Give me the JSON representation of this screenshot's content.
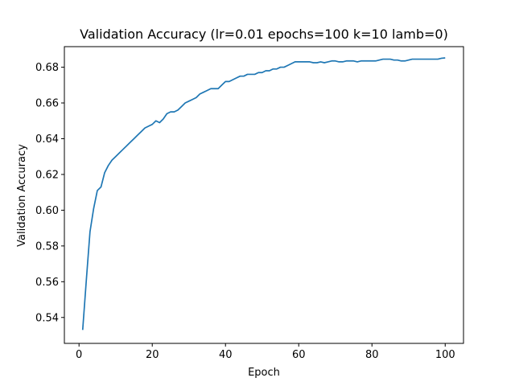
{
  "chart_data": {
    "type": "line",
    "title": "Validation Accuracy (lr=0.01 epochs=100 k=10 lamb=0)",
    "xlabel": "Epoch",
    "ylabel": "Validation Accuracy",
    "xlim": [
      -4,
      105
    ],
    "ylim": [
      0.5255,
      0.6915
    ],
    "xticks": [
      0,
      20,
      40,
      60,
      80,
      100
    ],
    "yticks": [
      0.54,
      0.56,
      0.58,
      0.6,
      0.62,
      0.64,
      0.66,
      0.68
    ],
    "xtick_labels": [
      "0",
      "20",
      "40",
      "60",
      "80",
      "100"
    ],
    "ytick_labels": [
      "0.54",
      "0.56",
      "0.58",
      "0.60",
      "0.62",
      "0.64",
      "0.66",
      "0.68"
    ],
    "grid": false,
    "line_color": "#1f77b4",
    "series": [
      {
        "x": [
          1,
          2,
          3,
          4,
          5,
          6,
          7,
          8,
          9,
          10,
          11,
          12,
          13,
          14,
          15,
          16,
          17,
          18,
          19,
          20,
          21,
          22,
          23,
          24,
          25,
          26,
          27,
          28,
          29,
          30,
          31,
          32,
          33,
          34,
          35,
          36,
          37,
          38,
          39,
          40,
          41,
          42,
          43,
          44,
          45,
          46,
          47,
          48,
          49,
          50,
          51,
          52,
          53,
          54,
          55,
          56,
          57,
          58,
          59,
          60,
          61,
          62,
          63,
          64,
          65,
          66,
          67,
          68,
          69,
          70,
          71,
          72,
          73,
          74,
          75,
          76,
          77,
          78,
          79,
          80,
          81,
          82,
          83,
          84,
          85,
          86,
          87,
          88,
          89,
          90,
          91,
          92,
          93,
          94,
          95,
          96,
          97,
          98,
          99,
          100
        ],
        "values": [
          0.533,
          0.561,
          0.588,
          0.601,
          0.611,
          0.613,
          0.621,
          0.625,
          0.628,
          0.63,
          0.632,
          0.634,
          0.636,
          0.638,
          0.64,
          0.642,
          0.644,
          0.646,
          0.647,
          0.648,
          0.65,
          0.649,
          0.651,
          0.654,
          0.655,
          0.655,
          0.656,
          0.658,
          0.66,
          0.661,
          0.662,
          0.663,
          0.665,
          0.666,
          0.667,
          0.668,
          0.668,
          0.668,
          0.67,
          0.672,
          0.672,
          0.673,
          0.674,
          0.675,
          0.675,
          0.676,
          0.676,
          0.676,
          0.677,
          0.677,
          0.678,
          0.678,
          0.679,
          0.679,
          0.68,
          0.68,
          0.681,
          0.682,
          0.683,
          0.683,
          0.683,
          0.683,
          0.683,
          0.6825,
          0.6825,
          0.683,
          0.6825,
          0.683,
          0.6835,
          0.6835,
          0.683,
          0.683,
          0.6835,
          0.6835,
          0.6835,
          0.683,
          0.6835,
          0.6835,
          0.6835,
          0.6835,
          0.6835,
          0.684,
          0.6845,
          0.6845,
          0.6845,
          0.684,
          0.684,
          0.6835,
          0.6835,
          0.684,
          0.6845,
          0.6845,
          0.6845,
          0.6845,
          0.6845,
          0.6845,
          0.6845,
          0.6845,
          0.685,
          0.6852
        ]
      }
    ]
  }
}
